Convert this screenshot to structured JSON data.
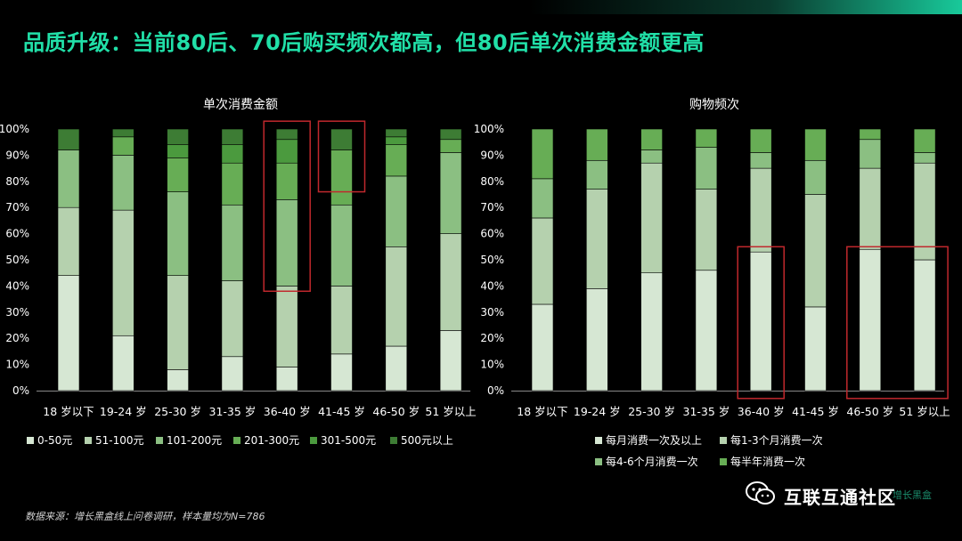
{
  "title": "品质升级：当前80后、70后购买频次都高，但80后单次消费金额更高",
  "source_note": "数据来源：增长黑盒线上问卷调研，样本量均为N=786",
  "watermark": {
    "text": "互联互通社区",
    "icon": "wechat-icon",
    "faint_text": "增长黑盒"
  },
  "colors": {
    "background": "#000000",
    "title": "#21e0a8",
    "highlight_box": "#c0282d",
    "stack": [
      "#d6e7d3",
      "#b5d1ae",
      "#8bbf82",
      "#67ad55",
      "#4b9a3e",
      "#3d7c34"
    ]
  },
  "chart_data": [
    {
      "type": "bar",
      "stacked": true,
      "title": "单次消费金额",
      "categories": [
        "18 岁以下",
        "19-24 岁",
        "25-30 岁",
        "31-35 岁",
        "36-40 岁",
        "41-45 岁",
        "46-50 岁",
        "51 岁以上"
      ],
      "ylim": [
        0,
        100
      ],
      "yticks": [
        "0%",
        "10%",
        "20%",
        "30%",
        "40%",
        "50%",
        "60%",
        "70%",
        "80%",
        "90%",
        "100%"
      ],
      "legend_position": "bottom",
      "series": [
        {
          "name": "0-50元",
          "values": [
            44,
            21,
            8,
            13,
            9,
            14,
            17,
            23
          ]
        },
        {
          "name": "51-100元",
          "values": [
            26,
            48,
            36,
            29,
            31,
            26,
            38,
            37
          ]
        },
        {
          "name": "101-200元",
          "values": [
            22,
            21,
            32,
            29,
            33,
            31,
            27,
            31
          ]
        },
        {
          "name": "201-300元",
          "values": [
            0,
            7,
            13,
            16,
            14,
            21,
            12,
            5
          ]
        },
        {
          "name": "301-500元",
          "values": [
            0,
            0,
            5,
            7,
            9,
            0,
            3,
            0
          ]
        },
        {
          "name": "500元以上",
          "values": [
            8,
            3,
            6,
            6,
            4,
            8,
            3,
            4
          ]
        }
      ],
      "highlights": [
        {
          "category_index": 4,
          "from": 38,
          "to": 103
        },
        {
          "category_index": 5,
          "from": 76,
          "to": 103
        }
      ]
    },
    {
      "type": "bar",
      "stacked": true,
      "title": "购物频次",
      "categories": [
        "18 岁以下",
        "19-24 岁",
        "25-30 岁",
        "31-35 岁",
        "36-40 岁",
        "41-45 岁",
        "46-50 岁",
        "51 岁以上"
      ],
      "ylim": [
        0,
        100
      ],
      "yticks": [
        "0%",
        "10%",
        "20%",
        "30%",
        "40%",
        "50%",
        "60%",
        "70%",
        "80%",
        "90%",
        "100%"
      ],
      "legend_position": "bottom",
      "series": [
        {
          "name": "每月消费一次及以上",
          "values": [
            33,
            39,
            45,
            46,
            53,
            32,
            54,
            50
          ]
        },
        {
          "name": "每1-3个月消费一次",
          "values": [
            33,
            38,
            42,
            31,
            32,
            43,
            31,
            37
          ]
        },
        {
          "name": "每4-6个月消费一次",
          "values": [
            15,
            11,
            5,
            16,
            6,
            13,
            11,
            4
          ]
        },
        {
          "name": "每半年消费一次",
          "values": [
            19,
            12,
            8,
            7,
            9,
            12,
            4,
            9
          ]
        }
      ],
      "highlights": [
        {
          "category_index": 4,
          "from": -3,
          "to": 55
        },
        {
          "category_index": 6,
          "to_category_index": 7,
          "from": -3,
          "to": 55
        }
      ]
    }
  ]
}
